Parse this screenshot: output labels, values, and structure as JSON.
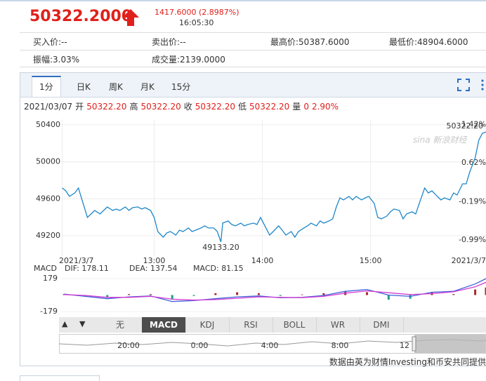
{
  "quote": {
    "price": "50322.2000",
    "change": "1417.6000 (2.8987%)",
    "time": "16:05:30"
  },
  "stats": [
    [
      "买入价:--",
      "卖出价:--",
      "最高价:50387.6000",
      "最低价:48904.6000"
    ],
    [
      "振幅:3.03%",
      "成交量:2139.0000"
    ]
  ],
  "tabs": {
    "items": [
      "1分",
      "日K",
      "周K",
      "月K",
      "15分"
    ],
    "active": 0
  },
  "info": {
    "date": "2021/03/07",
    "fields": [
      {
        "label": "开",
        "value": "50322.20"
      },
      {
        "label": "高",
        "value": "50322.20"
      },
      {
        "label": "收",
        "value": "50322.20"
      },
      {
        "label": "低",
        "value": "50322.20"
      },
      {
        "label": "量",
        "value": "0"
      }
    ],
    "change": "2.90%"
  },
  "watermark": "sina 新浪财经",
  "chart_data": [
    {
      "type": "line",
      "color": "#1f87c9",
      "x": [
        "12:09",
        "12:11",
        "12:13",
        "12:16",
        "12:18",
        "12:20",
        "12:23",
        "12:25",
        "12:27",
        "12:30",
        "12:32",
        "12:34",
        "12:37",
        "12:39",
        "12:41",
        "12:44",
        "12:46",
        "12:48",
        "12:51",
        "12:53",
        "12:55",
        "12:58",
        "13:00",
        "13:02",
        "13:05",
        "13:07",
        "13:09",
        "13:12",
        "13:14",
        "13:16",
        "13:19",
        "13:21",
        "13:23",
        "13:26",
        "13:28",
        "13:30",
        "13:33",
        "13:35",
        "13:37",
        "13:38",
        "13:41",
        "13:43",
        "13:45",
        "13:48",
        "13:50",
        "13:52",
        "13:55",
        "13:57",
        "13:59",
        "14:02",
        "14:04",
        "14:06",
        "14:09",
        "14:11",
        "14:13",
        "14:16",
        "14:18",
        "14:20",
        "14:23",
        "14:25",
        "14:27",
        "14:30",
        "14:32",
        "14:34",
        "14:37",
        "14:39",
        "14:41",
        "14:43",
        "14:45",
        "14:48",
        "14:50",
        "14:52",
        "14:55",
        "14:57",
        "14:59",
        "15:02",
        "15:04",
        "15:06",
        "15:09",
        "15:11",
        "15:13",
        "15:16",
        "15:18",
        "15:20",
        "15:23",
        "15:25",
        "15:27",
        "15:30",
        "15:32",
        "15:34",
        "15:37",
        "15:39",
        "15:41",
        "15:44",
        "15:46",
        "15:48",
        "15:51",
        "15:53",
        "15:55",
        "15:58",
        "16:00",
        "16:02",
        "16:04"
      ],
      "values": [
        49717,
        49686,
        49626,
        49663,
        49717,
        49588,
        49398,
        49436,
        49474,
        49436,
        49474,
        49512,
        49474,
        49489,
        49474,
        49512,
        49474,
        49504,
        49512,
        49489,
        49504,
        49474,
        49398,
        49246,
        49185,
        49231,
        49246,
        49208,
        49261,
        49246,
        49284,
        49246,
        49261,
        49284,
        49307,
        49284,
        49284,
        49246,
        49133.2,
        49337,
        49360,
        49322,
        49307,
        49337,
        49307,
        49322,
        49337,
        49322,
        49398,
        49284,
        49208,
        49246,
        49307,
        49261,
        49208,
        49246,
        49185,
        49246,
        49284,
        49307,
        49337,
        49307,
        49360,
        49337,
        49360,
        49383,
        49512,
        49610,
        49588,
        49626,
        49588,
        49626,
        49588,
        49610,
        49626,
        49550,
        49398,
        49383,
        49413,
        49459,
        49489,
        49474,
        49383,
        49436,
        49459,
        49436,
        49550,
        49717,
        49663,
        49686,
        49626,
        49588,
        49610,
        49588,
        49663,
        49641,
        49762,
        49762,
        49891,
        50043,
        50233,
        50309,
        50322.2
      ],
      "xlim": [
        "12:08",
        "16:04"
      ],
      "xticks": [
        {
          "value": "12:09",
          "label": "2021/3/7"
        },
        "13:00",
        "14:00",
        "15:00",
        {
          "value": "16:04",
          "label": "2021/3/7"
        }
      ],
      "ylim": [
        48980,
        50460
      ],
      "yticks": [
        49200,
        49600,
        50000,
        50400
      ],
      "y2lim": [
        -1.33,
        1.53
      ],
      "y2ticks": [
        {
          "value": 1.42,
          "label": "1.42%"
        },
        {
          "value": 0.62,
          "label": "0.62%"
        },
        {
          "value": -0.19,
          "label": "-0.19%"
        },
        {
          "value": -0.99,
          "label": "-0.99%"
        }
      ],
      "grid": true,
      "annotations": [
        {
          "x": "13:37",
          "value": 49133.2,
          "label": "49133.20"
        },
        {
          "x": "16:04",
          "value": 50322.2,
          "label": "50322.20"
        }
      ]
    },
    {
      "type": "macd",
      "title": "MACD",
      "x": [
        "12:10",
        "12:22",
        "12:34",
        "12:46",
        "12:58",
        "13:10",
        "13:22",
        "13:34",
        "13:46",
        "13:58",
        "14:10",
        "14:22",
        "14:34",
        "14:46",
        "14:58",
        "15:10",
        "15:22",
        "15:34",
        "15:46",
        "15:58",
        "16:04"
      ],
      "xlim": [
        "12:08",
        "16:04"
      ],
      "series": [
        {
          "name": "DIF:",
          "color": "#3f5fd8",
          "values": [
            10,
            -15,
            -40,
            -20,
            -10,
            -70,
            -60,
            -40,
            -20,
            -10,
            -30,
            -25,
            -5,
            40,
            60,
            0,
            -15,
            30,
            40,
            120,
            178.11
          ]
        },
        {
          "name": "DEA:",
          "color": "#d23cd2",
          "values": [
            5,
            -5,
            -25,
            -25,
            -15,
            -45,
            -55,
            -50,
            -35,
            -20,
            -25,
            -28,
            -15,
            20,
            45,
            25,
            5,
            15,
            35,
            90,
            137.54
          ]
        },
        {
          "name": "MACD:",
          "color": "#b02a2a",
          "values": [
            10,
            -20,
            -30,
            10,
            10,
            -50,
            -10,
            20,
            30,
            20,
            -10,
            6,
            20,
            40,
            30,
            -50,
            -40,
            30,
            10,
            60,
            81.15
          ]
        }
      ],
      "bar_colors": {
        "up": "#a52a2a",
        "down": "#1f9e8e"
      },
      "ylim": [
        -240,
        232
      ],
      "yticks": [
        -179,
        179
      ],
      "grid": true
    }
  ],
  "indicator_tabs": {
    "items": [
      "无",
      "MACD",
      "KDJ",
      "RSI",
      "BOLL",
      "WR",
      "DMI"
    ],
    "active": 1
  },
  "navigator": {
    "labels": [
      "20:00",
      "0:00",
      "4:00",
      "8:00",
      "12"
    ]
  },
  "footer": "数据由英为财情Investing和币安共同提供"
}
